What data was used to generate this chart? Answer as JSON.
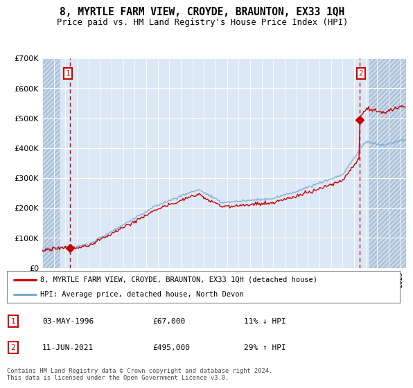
{
  "title": "8, MYRTLE FARM VIEW, CROYDE, BRAUNTON, EX33 1QH",
  "subtitle": "Price paid vs. HM Land Registry's House Price Index (HPI)",
  "ylim": [
    0,
    700000
  ],
  "yticks": [
    0,
    100000,
    200000,
    300000,
    400000,
    500000,
    600000,
    700000
  ],
  "ytick_labels": [
    "£0",
    "£100K",
    "£200K",
    "£300K",
    "£400K",
    "£500K",
    "£600K",
    "£700K"
  ],
  "xlim_start": 1994.0,
  "xlim_end": 2025.5,
  "hatch_left_end": 1995.5,
  "hatch_right_start": 2022.3,
  "sale1_x": 1996.37,
  "sale1_price": 67000,
  "sale1_label": "1",
  "sale1_text": "03-MAY-1996",
  "sale1_amount": "£67,000",
  "sale1_hpi": "11% ↓ HPI",
  "sale2_x": 2021.45,
  "sale2_price": 495000,
  "sale2_label": "2",
  "sale2_text": "11-JUN-2021",
  "sale2_amount": "£495,000",
  "sale2_hpi": "29% ↑ HPI",
  "legend_line1": "8, MYRTLE FARM VIEW, CROYDE, BRAUNTON, EX33 1QH (detached house)",
  "legend_line2": "HPI: Average price, detached house, North Devon",
  "footer": "Contains HM Land Registry data © Crown copyright and database right 2024.\nThis data is licensed under the Open Government Licence v3.0.",
  "price_color": "#cc0000",
  "hpi_color": "#7aaad0",
  "plot_bg": "#dce8f5",
  "hatch_bg": "#c8d8ea"
}
